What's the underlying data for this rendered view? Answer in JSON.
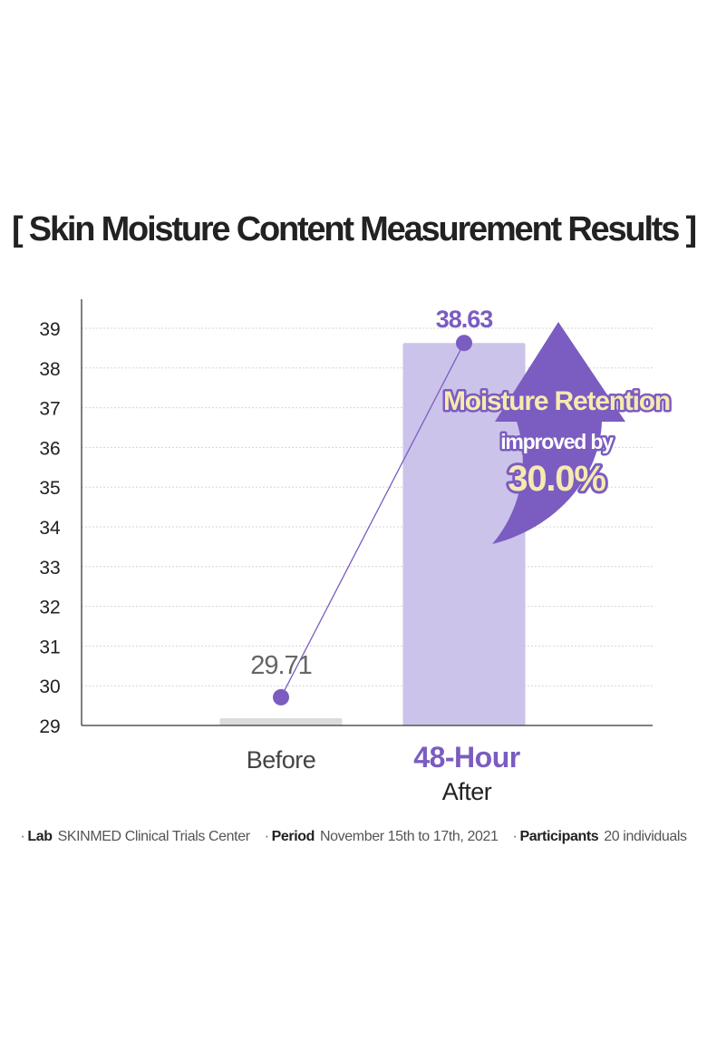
{
  "title": "[ Skin Moisture Content Measurement Results ]",
  "colors": {
    "accent": "#7b5cc0",
    "after_bar": "#cbc3ea",
    "before_bar": "#dcdcdc",
    "callout_text": "#f6eab0",
    "axis": "#555555",
    "grid": "#d5d5d5"
  },
  "chart_data": {
    "type": "bar",
    "title": "[ Skin Moisture Content Measurement Results ]",
    "categories": [
      "Before",
      "48-Hour After"
    ],
    "values": [
      29.71,
      38.63
    ],
    "value_labels": [
      "29.71",
      "38.63"
    ],
    "ylim": [
      29,
      39
    ],
    "yticks": [
      29,
      30,
      31,
      32,
      33,
      34,
      35,
      36,
      37,
      38,
      39
    ],
    "grid": true,
    "connector_line": true,
    "annotation": {
      "line1": "Moisture Retention",
      "line2": "improved by",
      "line3": "30.0%",
      "icon": "up-arrow-icon"
    }
  },
  "categories_display": {
    "before": "Before",
    "after_line1": "48-Hour",
    "after_line2": "After"
  },
  "footer": {
    "lab_key": "Lab",
    "lab_value": "SKINMED Clinical Trials Center",
    "period_key": "Period",
    "period_value": "November 15th to 17th, 2021",
    "participants_key": "Participants",
    "participants_value": "20 individuals"
  }
}
